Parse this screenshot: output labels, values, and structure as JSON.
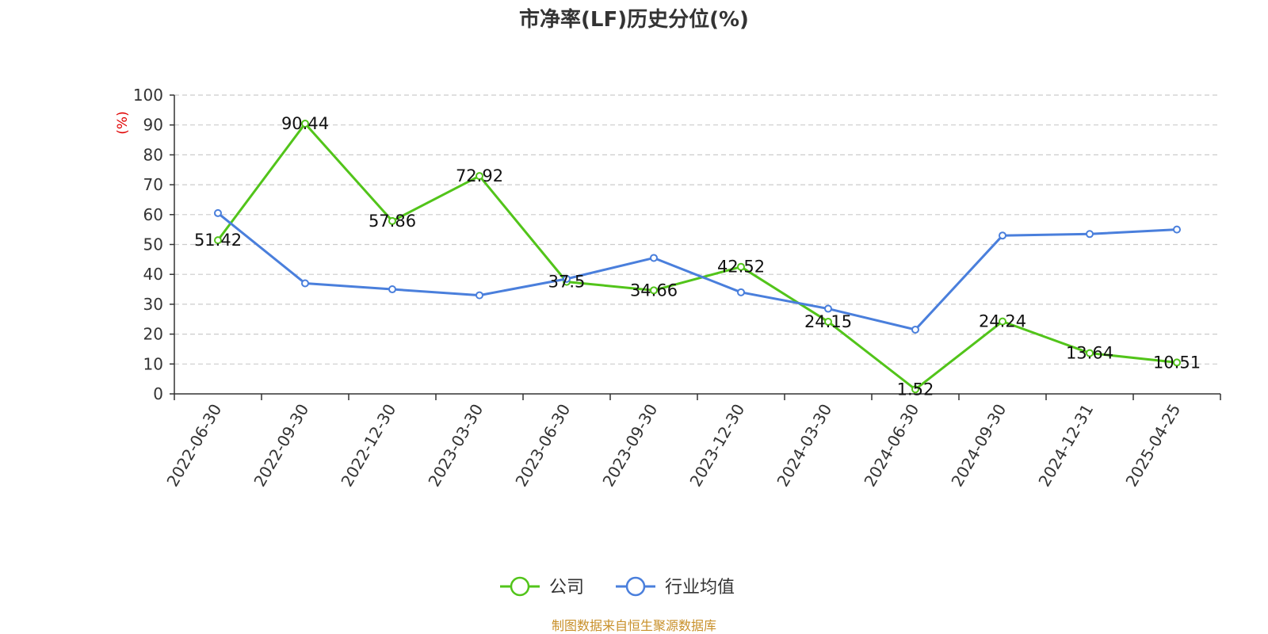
{
  "chart_data": {
    "type": "line",
    "title": "市净率(LF)历史分位(%)",
    "ylabel": "(%)",
    "ylim": [
      0,
      100
    ],
    "yticks": [
      0,
      10,
      20,
      30,
      40,
      50,
      60,
      70,
      80,
      90,
      100
    ],
    "grid": true,
    "legend_position": "bottom-center",
    "categories": [
      "2022-06-30",
      "2022-09-30",
      "2022-12-30",
      "2023-03-30",
      "2023-06-30",
      "2023-09-30",
      "2023-12-30",
      "2024-03-30",
      "2024-06-30",
      "2024-09-30",
      "2024-12-31",
      "2025-04-25"
    ],
    "series": [
      {
        "name": "公司",
        "color": "#52c41a",
        "show_labels": true,
        "values": [
          51.42,
          90.44,
          57.86,
          72.92,
          37.5,
          34.66,
          42.52,
          24.15,
          1.52,
          24.24,
          13.64,
          10.51
        ]
      },
      {
        "name": "行业均值",
        "color": "#4a7fdc",
        "show_labels": false,
        "values": [
          60.5,
          37.0,
          35.0,
          33.0,
          38.5,
          45.5,
          34.0,
          28.5,
          21.5,
          53.0,
          53.5,
          55.0
        ]
      }
    ],
    "source": "制图数据来自恒生聚源数据库"
  }
}
